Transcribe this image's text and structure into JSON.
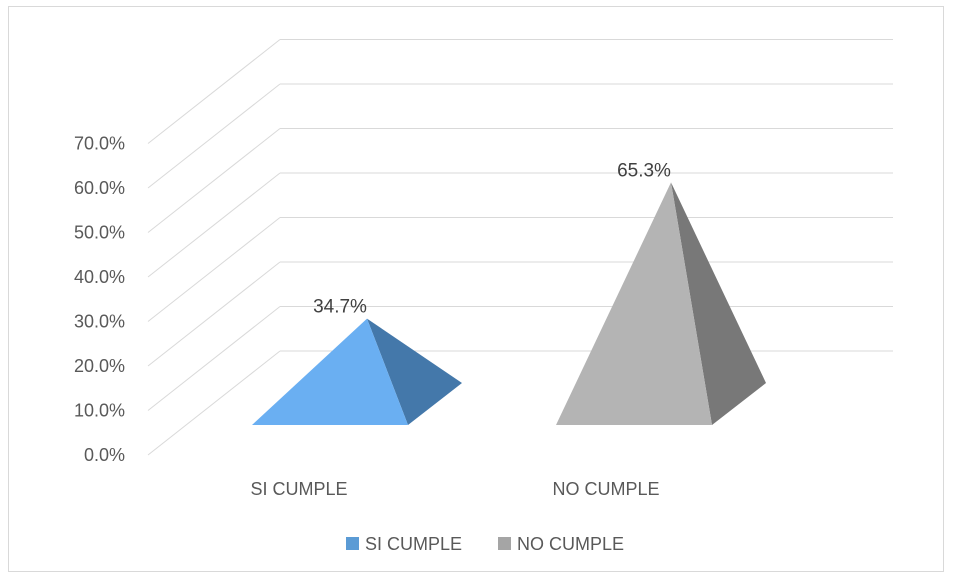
{
  "chart_data": {
    "type": "bar",
    "style": "3d-pyramid",
    "categories": [
      "SI CUMPLE",
      "NO CUMPLE"
    ],
    "values": [
      34.7,
      65.3
    ],
    "data_labels": [
      "34.7%",
      "65.3%"
    ],
    "ylim": [
      0,
      70
    ],
    "yticks": [
      "0.0%",
      "10.0%",
      "20.0%",
      "30.0%",
      "40.0%",
      "50.0%",
      "60.0%",
      "70.0%"
    ],
    "grid": true,
    "legend": {
      "position": "bottom",
      "entries": [
        {
          "label": "SI CUMPLE",
          "color": "#5B9BD5"
        },
        {
          "label": "NO CUMPLE",
          "color": "#A5A5A5"
        }
      ]
    },
    "colors": {
      "si_front": "#6AAFF2",
      "si_side": "#4478AA",
      "no_front": "#B4B4B4",
      "no_side": "#787878"
    }
  }
}
